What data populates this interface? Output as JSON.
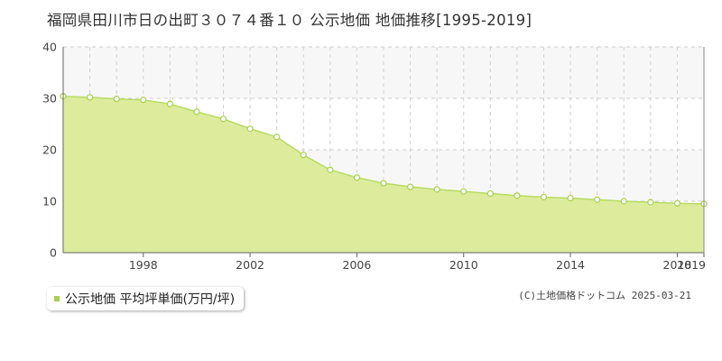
{
  "title": "福岡県田川市日の出町３０７４番１０ 公示地価 地価推移[1995-2019]",
  "legend": {
    "label": "公示地価 平均坪単価(万円/坪)"
  },
  "credit": "(C)土地価格ドットコム 2025-03-21",
  "colors": {
    "fill": "#dcec9c",
    "line": "#b8db62",
    "marker": "#a8d14a",
    "band": "#f7f7f7"
  },
  "chart_data": {
    "type": "area",
    "x": [
      1995,
      1996,
      1997,
      1998,
      1999,
      2000,
      2001,
      2002,
      2003,
      2004,
      2005,
      2006,
      2007,
      2008,
      2009,
      2010,
      2011,
      2012,
      2013,
      2014,
      2015,
      2016,
      2017,
      2018,
      2019
    ],
    "series": [
      {
        "values": [
          30.4,
          30.2,
          29.9,
          29.7,
          28.9,
          27.4,
          26.0,
          24.1,
          22.5,
          19.0,
          16.1,
          14.6,
          13.5,
          12.8,
          12.3,
          11.9,
          11.5,
          11.1,
          10.8,
          10.6,
          10.3,
          10.0,
          9.8,
          9.6,
          9.5
        ]
      }
    ],
    "xlim": [
      1995,
      2019
    ],
    "ylim": [
      0,
      40
    ],
    "yticks": [
      0,
      10,
      20,
      30,
      40
    ],
    "xtick_labels": [
      "1998",
      "2002",
      "2006",
      "2010",
      "2014",
      "2018",
      "2019"
    ],
    "grid": true,
    "legend_position": "bottom-left"
  }
}
